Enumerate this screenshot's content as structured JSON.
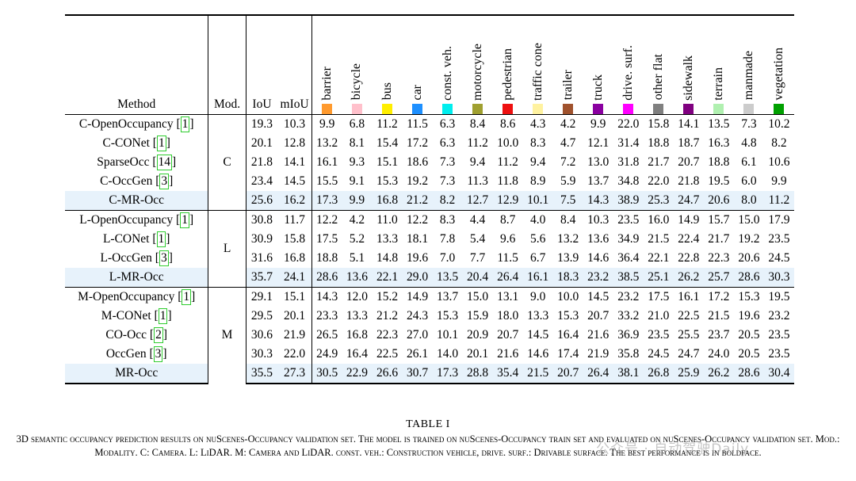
{
  "header": {
    "method": "Method",
    "modality": "Mod.",
    "iou": "IoU",
    "miou": "mIoU",
    "classes": [
      {
        "name": "barrier",
        "color": "#ff9a2e"
      },
      {
        "name": "bicycle",
        "color": "#ffc0cb"
      },
      {
        "name": "bus",
        "color": "#ffee00"
      },
      {
        "name": "car",
        "color": "#1e90ff"
      },
      {
        "name": "const. veh.",
        "color": "#00eeee"
      },
      {
        "name": "motorcycle",
        "color": "#a0a030"
      },
      {
        "name": "pedestrian",
        "color": "#ee1010"
      },
      {
        "name": "traffic cone",
        "color": "#fff2a0"
      },
      {
        "name": "trailer",
        "color": "#a0522d"
      },
      {
        "name": "truck",
        "color": "#8a00a0"
      },
      {
        "name": "drive. surf.",
        "color": "#ff00ff"
      },
      {
        "name": "other flat",
        "color": "#808080"
      },
      {
        "name": "sidewalk",
        "color": "#800080"
      },
      {
        "name": "terrain",
        "color": "#b0f0b0"
      },
      {
        "name": "manmade",
        "color": "#cccccc"
      },
      {
        "name": "vegetation",
        "color": "#00a000"
      }
    ]
  },
  "groups": [
    {
      "modality": "C",
      "rows": [
        {
          "method": "C-OpenOccupancy",
          "ref": "1",
          "iou": "19.3",
          "miou": "10.3",
          "values": [
            "9.9",
            "6.8",
            "11.2",
            "11.5",
            "6.3",
            "8.4",
            "8.6",
            "4.3",
            "4.2",
            "9.9",
            "22.0",
            "15.8",
            "14.1",
            "13.5",
            "7.3",
            "10.2"
          ]
        },
        {
          "method": "C-CONet",
          "ref": "1",
          "iou": "20.1",
          "miou": "12.8",
          "values": [
            "13.2",
            "8.1",
            "15.4",
            "17.2",
            "6.3",
            "11.2",
            "10.0",
            "8.3",
            "4.7",
            "12.1",
            "31.4",
            "18.8",
            "18.7",
            "16.3",
            "4.8",
            "8.2"
          ]
        },
        {
          "method": "SparseOcc",
          "ref": "14",
          "iou": "21.8",
          "miou": "14.1",
          "values": [
            "16.1",
            "9.3",
            "15.1",
            "18.6",
            "7.3",
            "9.4",
            "11.2",
            "9.4",
            "7.2",
            "13.0",
            "31.8",
            "21.7",
            "20.7",
            "18.8",
            "6.1",
            "10.6"
          ]
        },
        {
          "method": "C-OccGen",
          "ref": "3",
          "iou": "23.4",
          "miou": "14.5",
          "values": [
            "15.5",
            "9.1",
            "15.3",
            "19.2",
            "7.3",
            "11.3",
            "11.8",
            "8.9",
            "5.9",
            "13.7",
            "34.8",
            "22.0",
            "21.8",
            "19.5",
            "6.0",
            "9.9"
          ]
        },
        {
          "method": "C-MR-Occ",
          "ref": "",
          "highlight": true,
          "iou": "25.6",
          "miou": "16.2",
          "values": [
            "17.3",
            "9.9",
            "16.8",
            "21.2",
            "8.2",
            "12.7",
            "12.9",
            "10.1",
            "7.5",
            "14.3",
            "38.9",
            "25.3",
            "24.7",
            "20.6",
            "8.0",
            "11.2"
          ]
        }
      ]
    },
    {
      "modality": "L",
      "rows": [
        {
          "method": "L-OpenOccupancy",
          "ref": "1",
          "iou": "30.8",
          "miou": "11.7",
          "values": [
            "12.2",
            "4.2",
            "11.0",
            "12.2",
            "8.3",
            "4.4",
            "8.7",
            "4.0",
            "8.4",
            "10.3",
            "23.5",
            "16.0",
            "14.9",
            "15.7",
            "15.0",
            "17.9"
          ]
        },
        {
          "method": "L-CONet",
          "ref": "1",
          "iou": "30.9",
          "miou": "15.8",
          "values": [
            "17.5",
            "5.2",
            "13.3",
            "18.1",
            "7.8",
            "5.4",
            "9.6",
            "5.6",
            "13.2",
            "13.6",
            "34.9",
            "21.5",
            "22.4",
            "21.7",
            "19.2",
            "23.5"
          ]
        },
        {
          "method": "L-OccGen",
          "ref": "3",
          "iou": "31.6",
          "miou": "16.8",
          "values": [
            "18.8",
            "5.1",
            "14.8",
            "19.6",
            "7.0",
            "7.7",
            "11.5",
            "6.7",
            "13.9",
            "14.6",
            "36.4",
            "22.1",
            "22.8",
            "22.3",
            "20.6",
            "24.5"
          ]
        },
        {
          "method": "L-MR-Occ",
          "ref": "",
          "highlight": true,
          "iou": "35.7",
          "iou_bold": true,
          "miou": "24.1",
          "values": [
            "28.6",
            "13.6",
            "22.1",
            "29.0",
            "13.5",
            "20.4",
            "26.4",
            "16.1",
            "18.3",
            "23.2",
            "38.5",
            "25.1",
            "26.2",
            "25.7",
            "28.6",
            "30.3"
          ],
          "bold": [
            10,
            12
          ]
        }
      ]
    },
    {
      "modality": "M",
      "rows": [
        {
          "method": "M-OpenOccupancy",
          "ref": "1",
          "iou": "29.1",
          "miou": "15.1",
          "values": [
            "14.3",
            "12.0",
            "15.2",
            "14.9",
            "13.7",
            "15.0",
            "13.1",
            "9.0",
            "10.0",
            "14.5",
            "23.2",
            "17.5",
            "16.1",
            "17.2",
            "15.3",
            "19.5"
          ]
        },
        {
          "method": "M-CONet",
          "ref": "1",
          "iou": "29.5",
          "miou": "20.1",
          "values": [
            "23.3",
            "13.3",
            "21.2",
            "24.3",
            "15.3",
            "15.9",
            "18.0",
            "13.3",
            "15.3",
            "20.7",
            "33.2",
            "21.0",
            "22.5",
            "21.5",
            "19.6",
            "23.2"
          ]
        },
        {
          "method": "CO-Occ",
          "ref": "2",
          "iou": "30.6",
          "miou": "21.9",
          "values": [
            "26.5",
            "16.8",
            "22.3",
            "27.0",
            "10.1",
            "20.9",
            "20.7",
            "14.5",
            "16.4",
            "21.6",
            "36.9",
            "23.5",
            "25.5",
            "23.7",
            "20.5",
            "23.5"
          ]
        },
        {
          "method": "OccGen",
          "ref": "3",
          "iou": "30.3",
          "miou": "22.0",
          "values": [
            "24.9",
            "16.4",
            "22.5",
            "26.1",
            "14.0",
            "20.1",
            "21.6",
            "14.6",
            "17.4",
            "21.9",
            "35.8",
            "24.5",
            "24.7",
            "24.0",
            "20.5",
            "23.5"
          ]
        },
        {
          "method": "MR-Occ",
          "ref": "",
          "highlight": true,
          "iou": "35.5",
          "miou": "27.3",
          "miou_bold": true,
          "values": [
            "30.5",
            "22.9",
            "26.6",
            "30.7",
            "17.3",
            "28.8",
            "35.4",
            "21.5",
            "20.7",
            "26.4",
            "38.1",
            "26.8",
            "25.9",
            "26.2",
            "28.6",
            "30.4"
          ],
          "bold": [
            0,
            1,
            2,
            3,
            4,
            5,
            6,
            7,
            8,
            9,
            11,
            13,
            14,
            15
          ]
        }
      ]
    }
  ],
  "caption": {
    "title": "TABLE I",
    "text": "3D semantic occupancy prediction results on nuScenes-Occupancy validation set. The model is trained on nuScenes-Occupancy train set and evaluated on nuScenes-Occupancy validation set. Mod.: Modality. C: Camera. L: LiDAR. M: Camera and LiDAR. const. veh.: Construction vehicle, drive. surf.: Drivable surface. The best performance is in boldface."
  },
  "watermark": "公众号 · 自动驾驶Daily"
}
